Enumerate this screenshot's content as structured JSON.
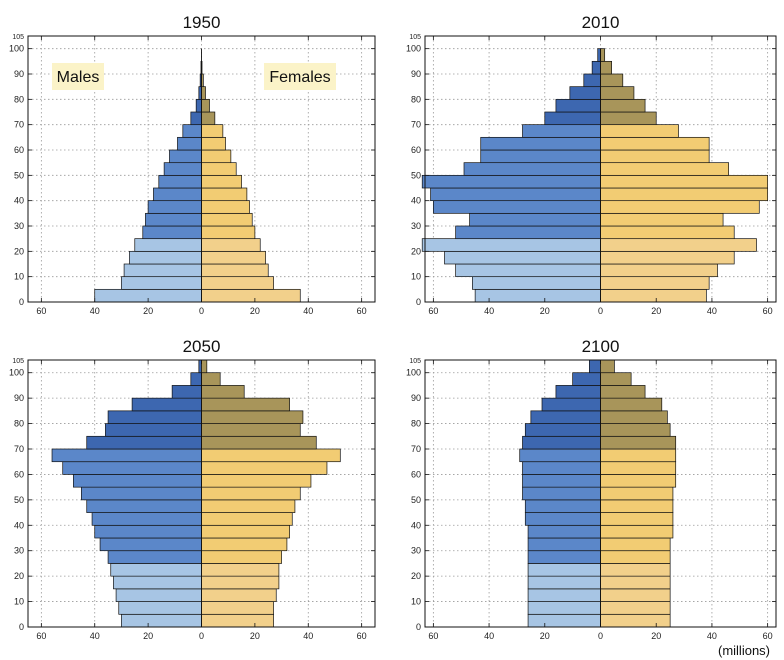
{
  "figure": {
    "units_label": "(millions)",
    "males_label": "Males",
    "females_label": "Females"
  },
  "colors": {
    "male_young": "#a7c5e4",
    "male_mid": "#5b87c9",
    "male_old": "#3d67b0",
    "female_young": "#f2d08b",
    "female_mid": "#f2cc73",
    "female_old": "#a8955a",
    "label_bg": "#fbf3c8",
    "grid": "#9a9a9a"
  },
  "chart_data": [
    {
      "type": "bar",
      "title": "1950",
      "age_groups": [
        0,
        5,
        10,
        15,
        20,
        25,
        30,
        35,
        40,
        45,
        50,
        55,
        60,
        65,
        70,
        75,
        80,
        85,
        90,
        95,
        100
      ],
      "xlim": [
        -65,
        65
      ],
      "ylim": [
        0,
        105
      ],
      "xticks": [
        -60,
        -40,
        -20,
        0,
        20,
        40,
        60
      ],
      "xtick_labels": [
        "60",
        "40",
        "20",
        "0",
        "20",
        "40",
        "60"
      ],
      "yticks": [
        0,
        10,
        20,
        30,
        40,
        50,
        60,
        70,
        80,
        90,
        100,
        105
      ],
      "series": [
        {
          "name": "Males",
          "values": [
            40,
            30,
            29,
            27,
            25,
            22,
            21,
            20,
            18,
            16,
            14,
            12,
            9,
            7,
            4,
            2,
            1,
            0.5,
            0.2,
            0,
            0
          ]
        },
        {
          "name": "Females",
          "values": [
            37,
            27,
            25,
            24,
            22,
            20,
            19,
            18,
            17,
            15,
            13,
            11,
            9,
            8,
            5,
            3,
            1.5,
            0.7,
            0.2,
            0,
            0
          ]
        }
      ]
    },
    {
      "type": "bar",
      "title": "2010",
      "age_groups": [
        0,
        5,
        10,
        15,
        20,
        25,
        30,
        35,
        40,
        45,
        50,
        55,
        60,
        65,
        70,
        75,
        80,
        85,
        90,
        95,
        100
      ],
      "xlim": [
        -63,
        63
      ],
      "ylim": [
        0,
        105
      ],
      "xticks": [
        -60,
        -40,
        -20,
        0,
        20,
        40,
        60
      ],
      "xtick_labels": [
        "60",
        "40",
        "20",
        "0",
        "20",
        "40",
        "60"
      ],
      "yticks": [
        0,
        10,
        20,
        30,
        40,
        50,
        60,
        70,
        80,
        90,
        100,
        105
      ],
      "series": [
        {
          "name": "Males",
          "values": [
            45,
            46,
            52,
            56,
            64,
            52,
            47,
            60,
            61,
            64,
            49,
            43,
            43,
            28,
            20,
            16,
            11,
            6,
            3,
            1,
            0
          ]
        },
        {
          "name": "Females",
          "values": [
            38,
            39,
            42,
            48,
            56,
            48,
            44,
            57,
            60,
            60,
            46,
            39,
            39,
            28,
            20,
            16,
            12,
            8,
            4,
            1.5,
            0
          ]
        }
      ]
    },
    {
      "type": "bar",
      "title": "2050",
      "age_groups": [
        0,
        5,
        10,
        15,
        20,
        25,
        30,
        35,
        40,
        45,
        50,
        55,
        60,
        65,
        70,
        75,
        80,
        85,
        90,
        95,
        100
      ],
      "xlim": [
        -65,
        65
      ],
      "ylim": [
        0,
        105
      ],
      "xticks": [
        -60,
        -40,
        -20,
        0,
        20,
        40,
        60
      ],
      "xtick_labels": [
        "60",
        "40",
        "20",
        "0",
        "20",
        "40",
        "60"
      ],
      "yticks": [
        0,
        10,
        20,
        30,
        40,
        50,
        60,
        70,
        80,
        90,
        100,
        105
      ],
      "series": [
        {
          "name": "Males",
          "values": [
            30,
            31,
            32,
            33,
            34,
            35,
            38,
            40,
            41,
            43,
            45,
            48,
            52,
            56,
            43,
            36,
            35,
            26,
            11,
            4,
            1
          ]
        },
        {
          "name": "Females",
          "values": [
            27,
            27,
            28,
            29,
            29,
            30,
            32,
            33,
            34,
            35,
            37,
            41,
            47,
            52,
            43,
            37,
            38,
            33,
            16,
            7,
            2
          ]
        }
      ]
    },
    {
      "type": "bar",
      "title": "2100",
      "age_groups": [
        0,
        5,
        10,
        15,
        20,
        25,
        30,
        35,
        40,
        45,
        50,
        55,
        60,
        65,
        70,
        75,
        80,
        85,
        90,
        95,
        100
      ],
      "xlim": [
        -63,
        63
      ],
      "ylim": [
        0,
        105
      ],
      "xticks": [
        -60,
        -40,
        -20,
        0,
        20,
        40,
        60
      ],
      "xtick_labels": [
        "60",
        "40",
        "20",
        "0",
        "20",
        "40",
        "60"
      ],
      "yticks": [
        0,
        10,
        20,
        30,
        40,
        50,
        60,
        70,
        80,
        90,
        100,
        105
      ],
      "series": [
        {
          "name": "Males",
          "values": [
            26,
            26,
            26,
            26,
            26,
            26,
            26,
            26,
            27,
            27,
            28,
            28,
            28,
            29,
            28,
            27,
            25,
            21,
            16,
            10,
            4
          ]
        },
        {
          "name": "Females",
          "values": [
            25,
            25,
            25,
            25,
            25,
            25,
            25,
            26,
            26,
            26,
            26,
            27,
            27,
            27,
            27,
            25,
            24,
            22,
            16,
            11,
            5
          ]
        }
      ]
    }
  ]
}
